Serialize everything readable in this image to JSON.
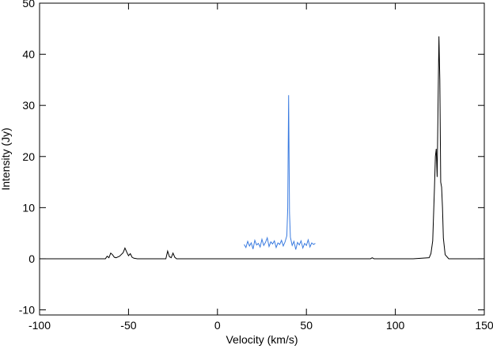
{
  "chart_data": {
    "type": "line",
    "xlabel": "Velocity (km/s)",
    "ylabel": "Intensity (Jy)",
    "xlim": [
      -100,
      150
    ],
    "ylim": [
      -11,
      50
    ],
    "xticks": [
      -100,
      -50,
      0,
      50,
      100,
      150
    ],
    "yticks": [
      -10,
      0,
      10,
      20,
      30,
      40,
      50
    ],
    "series": [
      {
        "color": "#000000",
        "x": [
          -100,
          -70,
          -63,
          -62,
          -61,
          -60,
          -59,
          -58,
          -57,
          -55,
          -53,
          -52,
          -51,
          -50,
          -49,
          -48,
          -47,
          -45,
          -35,
          -29,
          -28,
          -27,
          -26,
          -25,
          -24,
          -23,
          -20,
          0,
          50,
          86,
          87,
          88,
          110,
          119,
          120,
          121,
          122,
          122.5,
          123,
          123.5,
          124,
          124.5,
          125,
          125.5,
          126,
          126.5,
          127,
          128,
          130,
          150
        ],
        "values": [
          0,
          0,
          0,
          0.5,
          0.2,
          1.1,
          0.8,
          0.3,
          0.2,
          0.5,
          1.2,
          2.1,
          1.3,
          0.6,
          1.0,
          0.3,
          0.1,
          0,
          0,
          0,
          1.5,
          0.4,
          0.2,
          1.1,
          0.3,
          0,
          0,
          0,
          0,
          0,
          0.2,
          0,
          0,
          0.2,
          1.0,
          3.5,
          14,
          20,
          21.5,
          16,
          30,
          43.5,
          35,
          15,
          14,
          10,
          4,
          0.8,
          0,
          0
        ]
      },
      {
        "color": "#3a7be0",
        "x": [
          15,
          16,
          17,
          18,
          19,
          20,
          21,
          22,
          23,
          24,
          25,
          26,
          27,
          28,
          29,
          30,
          31,
          32,
          33,
          34,
          35,
          36,
          37,
          38,
          39,
          39.5,
          40,
          40.5,
          41,
          42,
          43,
          44,
          45,
          46,
          47,
          48,
          49,
          50,
          51,
          52,
          53,
          54,
          55
        ],
        "values": [
          2.8,
          2.2,
          3.4,
          2.5,
          3.1,
          1.9,
          3.6,
          2.7,
          3.0,
          2.3,
          3.8,
          2.6,
          3.2,
          4.1,
          2.4,
          3.3,
          2.9,
          3.5,
          2.2,
          3.1,
          2.8,
          3.6,
          2.5,
          3.3,
          4.5,
          10,
          32,
          9,
          4.2,
          2.6,
          3.4,
          1.8,
          3.2,
          2.7,
          3.5,
          2.1,
          3.0,
          2.6,
          3.7,
          2.3,
          3.1,
          2.8,
          3.0
        ]
      }
    ]
  }
}
